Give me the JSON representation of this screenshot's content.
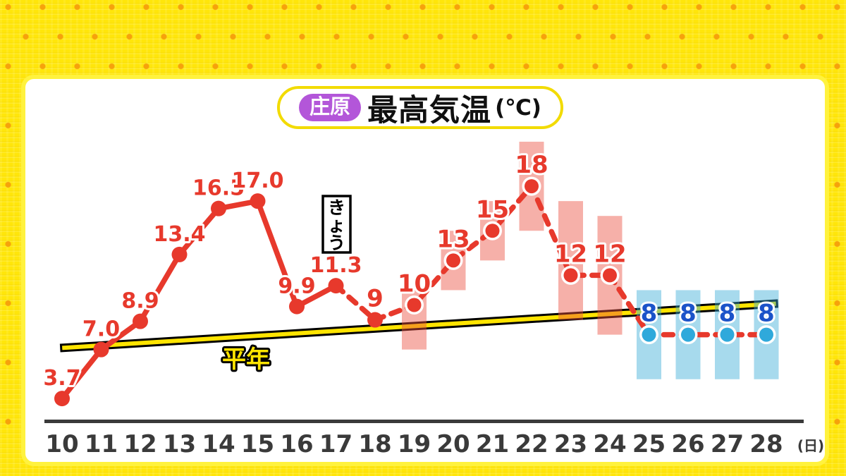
{
  "title": {
    "location_badge": "庄原",
    "main": "最高気温",
    "unit": "(℃)"
  },
  "colors": {
    "accent_red": "#E7392C",
    "blue_dot": "#2FA9DB",
    "blue_label": "#1B53C9",
    "normal_line_yellow": "#FFE400",
    "badge_purple": "#B356D9",
    "banner_border_yellow": "#F2DB00",
    "frame_yellow": "#FFE60A",
    "frame_dot_orange": "#F59E0B",
    "axis_gray": "#3A3A3A",
    "range_pink": "rgba(235,80,65,0.45)",
    "range_blue": "rgba(55,170,215,0.44)"
  },
  "chart_data": {
    "type": "line",
    "title": "庄原 最高気温(℃)",
    "x_axis": {
      "first_day": 10,
      "labels": [
        "10",
        "11",
        "12",
        "13",
        "14",
        "15",
        "16",
        "17",
        "18",
        "19",
        "20",
        "21",
        "22",
        "23",
        "24",
        "25",
        "26",
        "27",
        "28"
      ],
      "unit_label": "(日)"
    },
    "y_axis": {
      "visible": false,
      "unit": "℃"
    },
    "points": [
      {
        "day": 10,
        "value": 3.7,
        "label": "3.7",
        "kind": "observed",
        "ring": false
      },
      {
        "day": 11,
        "value": 7.0,
        "label": "7.0",
        "kind": "observed",
        "ring": false
      },
      {
        "day": 12,
        "value": 8.9,
        "label": "8.9",
        "kind": "observed",
        "ring": false
      },
      {
        "day": 13,
        "value": 13.4,
        "label": "13.4",
        "kind": "observed",
        "ring": false
      },
      {
        "day": 14,
        "value": 16.5,
        "label": "16.5",
        "kind": "observed",
        "ring": false
      },
      {
        "day": 15,
        "value": 17.0,
        "label": "17.0",
        "kind": "observed",
        "ring": false
      },
      {
        "day": 16,
        "value": 9.9,
        "label": "9.9",
        "kind": "observed",
        "ring": false
      },
      {
        "day": 17,
        "value": 11.3,
        "label": "11.3",
        "kind": "observed",
        "ring": false
      },
      {
        "day": 18,
        "value": 9,
        "label": "9",
        "kind": "forecast",
        "ring": false
      },
      {
        "day": 19,
        "value": 10,
        "label": "10",
        "kind": "forecast",
        "ring": true,
        "range": [
          7,
          11
        ]
      },
      {
        "day": 20,
        "value": 13,
        "label": "13",
        "kind": "forecast",
        "ring": true,
        "range": [
          11,
          15
        ]
      },
      {
        "day": 21,
        "value": 15,
        "label": "15",
        "kind": "forecast",
        "ring": true,
        "range": [
          13,
          17
        ]
      },
      {
        "day": 22,
        "value": 18,
        "label": "18",
        "kind": "forecast",
        "ring": true,
        "range": [
          15,
          21
        ]
      },
      {
        "day": 23,
        "value": 12,
        "label": "12",
        "kind": "forecast",
        "ring": true,
        "range": [
          9,
          17
        ]
      },
      {
        "day": 24,
        "value": 12,
        "label": "12",
        "kind": "forecast",
        "ring": true,
        "range": [
          8,
          16
        ]
      },
      {
        "day": 25,
        "value": 8,
        "label": "8",
        "kind": "forecast-cold",
        "ring": true,
        "range": [
          5,
          11
        ]
      },
      {
        "day": 26,
        "value": 8,
        "label": "8",
        "kind": "forecast-cold",
        "ring": true,
        "range": [
          5,
          11
        ]
      },
      {
        "day": 27,
        "value": 8,
        "label": "8",
        "kind": "forecast-cold",
        "ring": true,
        "range": [
          5,
          11
        ]
      },
      {
        "day": 28,
        "value": 8,
        "label": "8",
        "kind": "forecast-cold",
        "ring": true,
        "range": [
          5,
          11
        ]
      }
    ],
    "solid_through_day": 17,
    "normal_line": {
      "label": "平年",
      "start_day": 9.95,
      "start_value": 7.1,
      "end_day": 28.3,
      "end_value": 10.1
    },
    "today": {
      "label": "きょう",
      "day": 17
    }
  }
}
